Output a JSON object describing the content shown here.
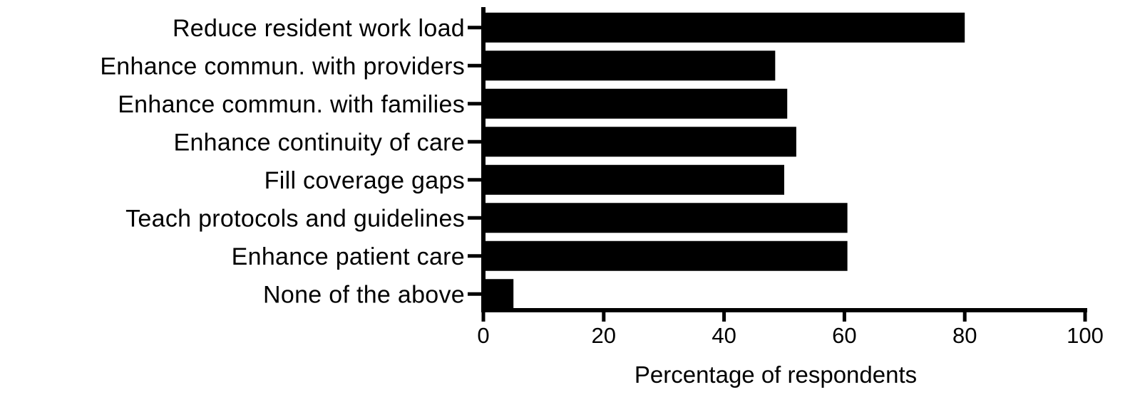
{
  "chart_data": {
    "type": "bar",
    "orientation": "horizontal",
    "title": "",
    "xlabel": "Percentage of respondents",
    "ylabel": "",
    "xlim": [
      0,
      100
    ],
    "xticks": [
      "0",
      "20",
      "40",
      "60",
      "80",
      "100"
    ],
    "grid": false,
    "legend": "none",
    "bar_color": "#000000",
    "categories": [
      "Reduce resident work load",
      "Enhance commun. with providers",
      "Enhance commun. with families",
      "Enhance continuity of care",
      "Fill coverage gaps",
      "Teach protocols and guidelines",
      "Enhance patient care",
      "None of the above"
    ],
    "values": [
      80,
      48.5,
      50.5,
      52,
      50,
      60.5,
      60.5,
      5
    ]
  }
}
